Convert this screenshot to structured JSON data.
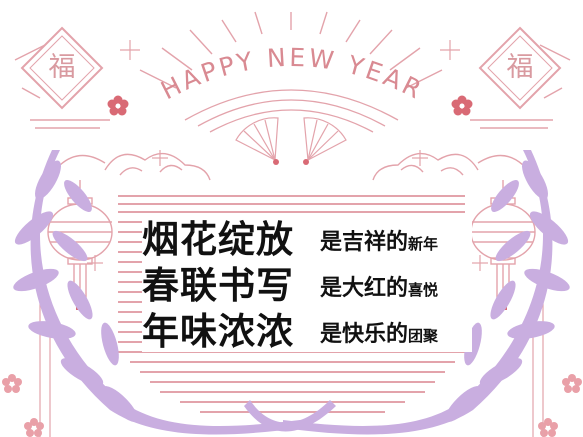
{
  "greeting": "HAPPY NEW YEAR",
  "fu_left": "福",
  "fu_right": "福",
  "phrases": [
    {
      "main": "烟花绽放",
      "sub_a": "是吉祥的",
      "sub_b": "新年"
    },
    {
      "main": "春联书写",
      "sub_a": "是大红的",
      "sub_b": "喜悦"
    },
    {
      "main": "年味浓浓",
      "sub_a": "是快乐的",
      "sub_b": "团聚"
    }
  ],
  "colors": {
    "pink_line": "#e3a3ab",
    "pink_text": "#d98a92",
    "lavender": "#c9aee0",
    "red_accent": "#d96a75",
    "text": "#111111"
  },
  "icons": [
    "fu-diamond-icon",
    "folding-fan-icon",
    "paper-lantern-icon",
    "laurel-branch-icon",
    "plum-blossom-icon",
    "auspicious-cloud-icon",
    "sparkle-icon"
  ]
}
